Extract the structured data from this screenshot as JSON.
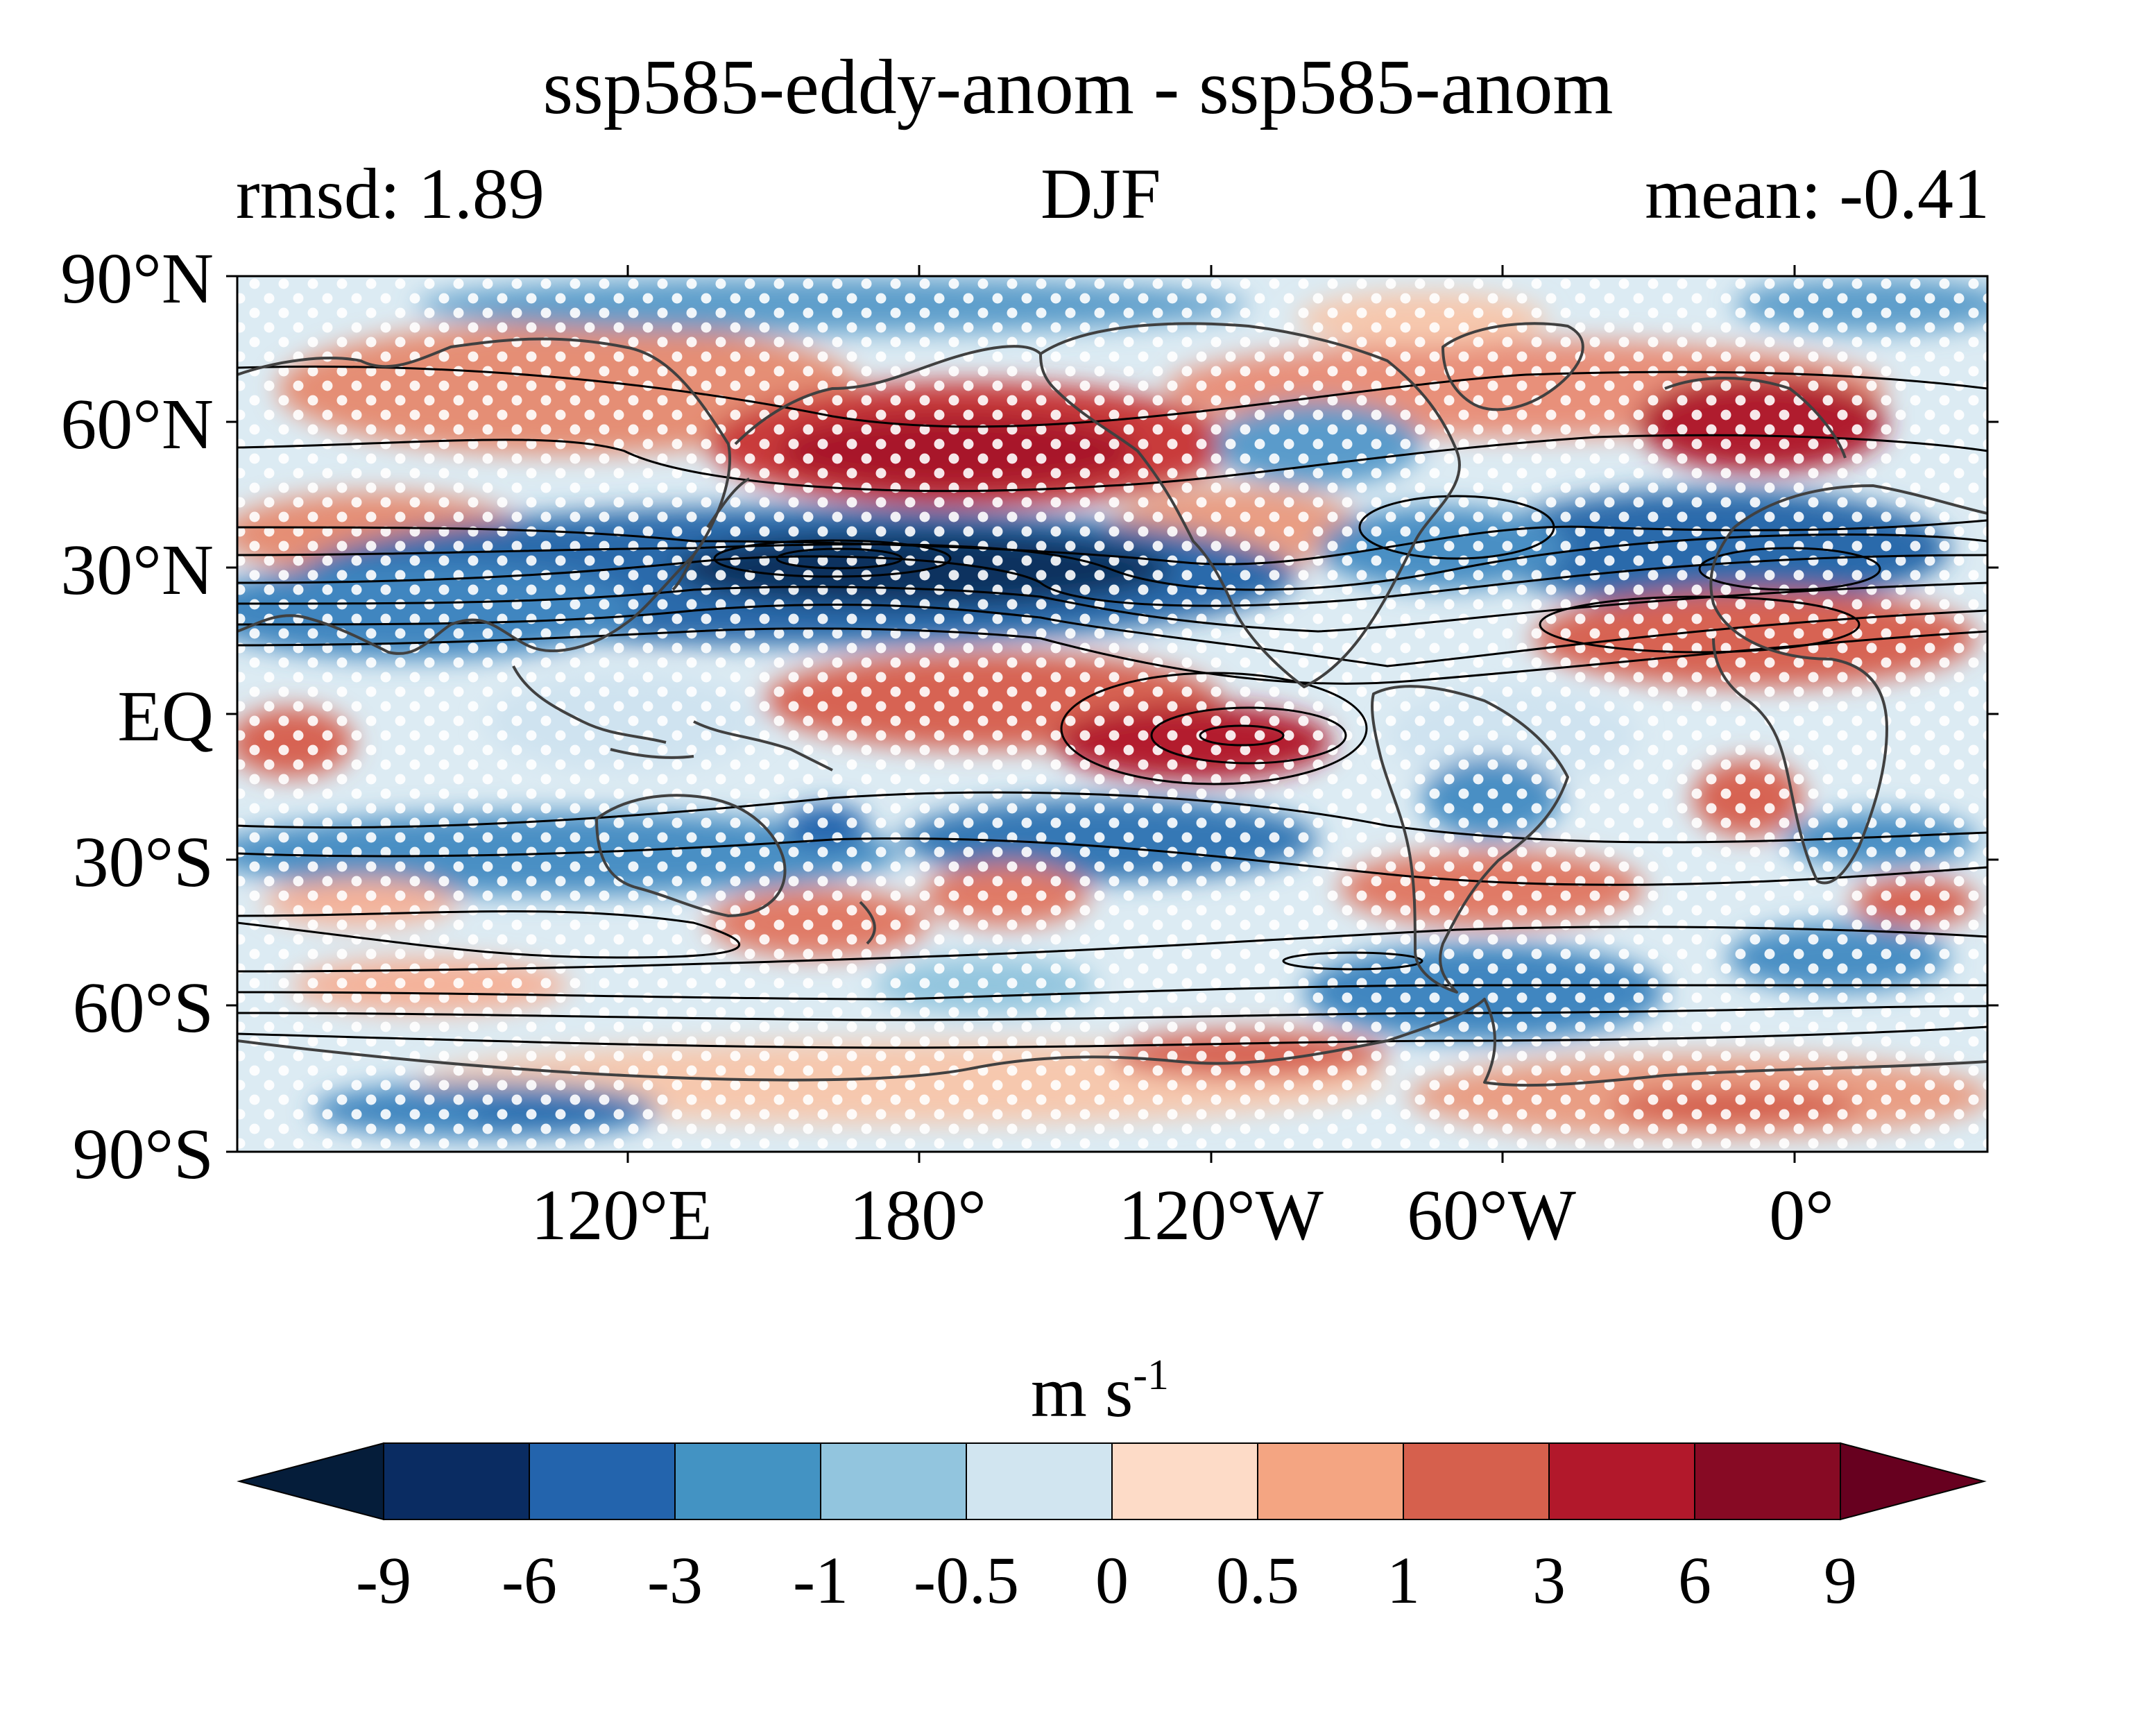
{
  "title": "ssp585-eddy-anom - ssp585-anom",
  "left_subtitle": "rmsd: 1.89",
  "center_subtitle": "DJF",
  "right_subtitle": "mean: -0.41",
  "map": {
    "projection": "PlateCarree (central longitude ~150°E)",
    "lat_ticks": [
      "90°N",
      "60°N",
      "30°N",
      "EQ",
      "30°S",
      "60°S",
      "90°S"
    ],
    "lon_ticks": [
      "120°E",
      "180°",
      "120°W",
      "60°W",
      "0°"
    ],
    "stippling": "white dots",
    "coastline_color": "#404040",
    "contour_color": "#000000"
  },
  "colorbar": {
    "label_main": "m s",
    "label_sup": "-1",
    "tick_labels": [
      "-9",
      "-6",
      "-3",
      "-1",
      "-0.5",
      "0",
      "0.5",
      "1",
      "3",
      "6",
      "9"
    ],
    "colors": [
      "#051d3a",
      "#0a2c62",
      "#2364ad",
      "#4393c3",
      "#92c5de",
      "#d1e5f0",
      "#fddbc7",
      "#f4a582",
      "#d6604d",
      "#b2182b",
      "#870a24",
      "#67001f"
    ],
    "extend": "both"
  }
}
